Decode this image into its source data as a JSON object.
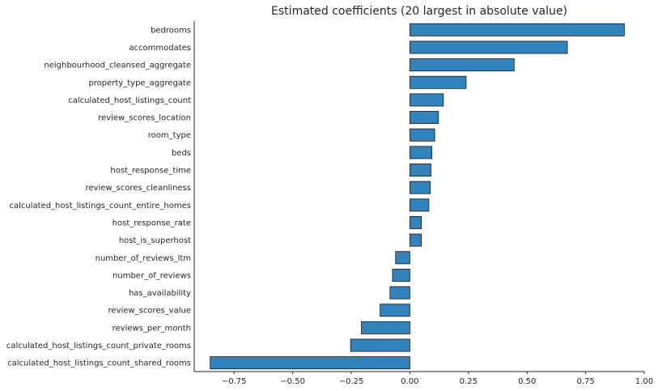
{
  "chart_data": {
    "type": "bar",
    "orientation": "horizontal",
    "title": "Estimated coefficients (20 largest in absolute value)",
    "xlabel": "",
    "ylabel": "",
    "xlim": [
      -0.92,
      1.0
    ],
    "xticks": [
      -0.75,
      -0.5,
      -0.25,
      0.0,
      0.25,
      0.5,
      0.75,
      1.0
    ],
    "xtick_labels": [
      "−0.75",
      "−0.50",
      "−0.25",
      "0.00",
      "0.25",
      "0.50",
      "0.75",
      "1.00"
    ],
    "grid": false,
    "bar_color": "#3182bd",
    "categories": [
      "bedrooms",
      "accommodates",
      "neighbourhood_cleansed_aggregate",
      "property_type_aggregate",
      "calculated_host_listings_count",
      "review_scores_location",
      "room_type",
      "beds",
      "host_response_time",
      "review_scores_cleanliness",
      "calculated_host_listings_count_entire_homes",
      "host_response_rate",
      "host_is_superhost",
      "number_of_reviews_ltm",
      "number_of_reviews",
      "has_availability",
      "review_scores_value",
      "reviews_per_month",
      "calculated_host_listings_count_private_rooms",
      "calculated_host_listings_count_shared_rooms"
    ],
    "values": [
      0.915,
      0.672,
      0.445,
      0.24,
      0.143,
      0.122,
      0.106,
      0.094,
      0.09,
      0.087,
      0.081,
      0.049,
      0.049,
      -0.061,
      -0.074,
      -0.085,
      -0.127,
      -0.207,
      -0.253,
      -0.852
    ]
  }
}
